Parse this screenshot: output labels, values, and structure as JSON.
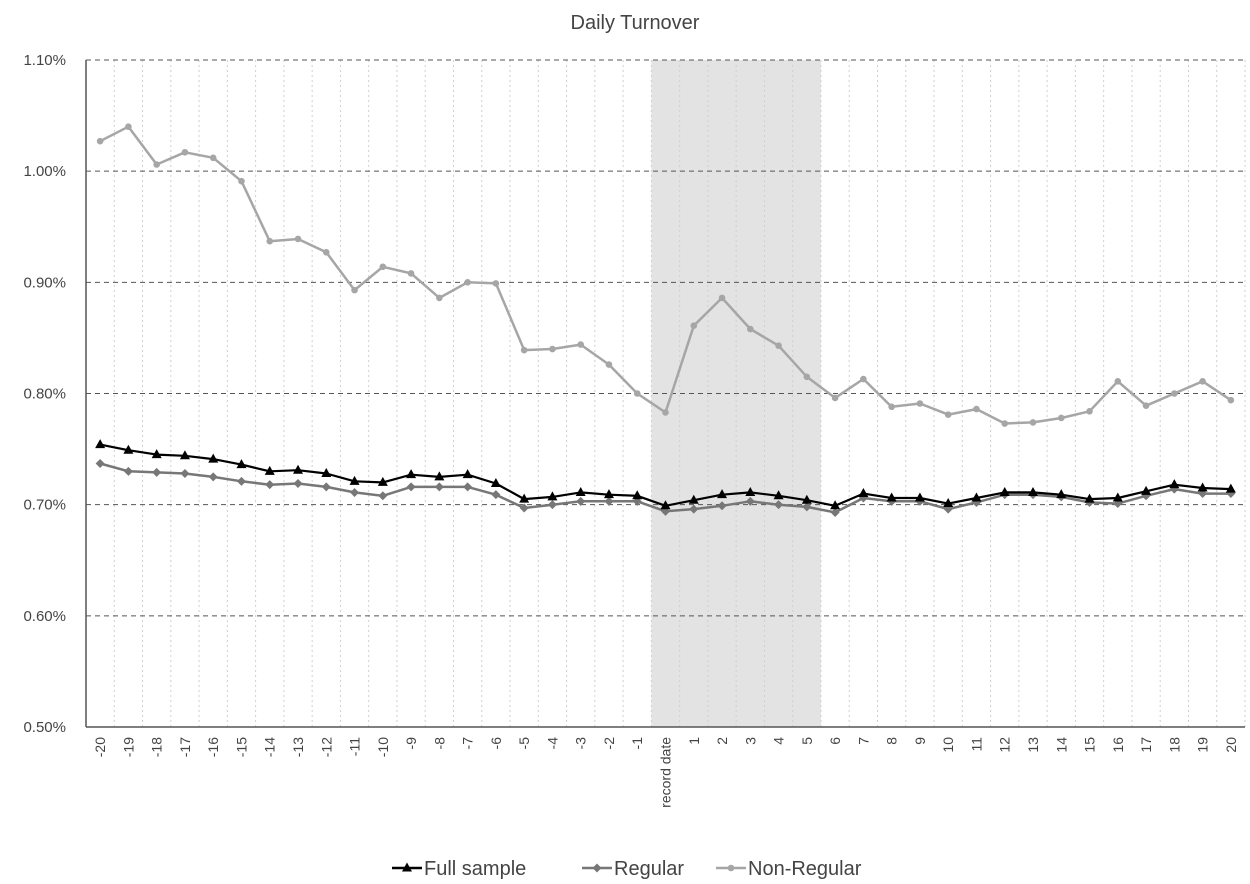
{
  "chart_data": {
    "type": "line",
    "title": "Daily Turnover",
    "xlabel": "",
    "ylabel": "",
    "categories": [
      "-20",
      "-19",
      "-18",
      "-17",
      "-16",
      "-15",
      "-14",
      "-13",
      "-12",
      "-11",
      "-10",
      "-9",
      "-8",
      "-7",
      "-6",
      "-5",
      "-4",
      "-3",
      "-2",
      "-1",
      "record date",
      "1",
      "2",
      "3",
      "4",
      "5",
      "6",
      "7",
      "8",
      "9",
      "10",
      "11",
      "12",
      "13",
      "14",
      "15",
      "16",
      "17",
      "18",
      "19",
      "20"
    ],
    "ylim": [
      0.5,
      1.1
    ],
    "yticks": [
      "0.50%",
      "0.60%",
      "0.70%",
      "0.80%",
      "0.90%",
      "1.00%",
      "1.10%"
    ],
    "grid": true,
    "shaded_region": {
      "from": "record date",
      "to": "5"
    },
    "legend_position": "bottom",
    "series": [
      {
        "name": "Full sample",
        "color": "#000000",
        "marker": "triangle",
        "values": [
          0.754,
          0.749,
          0.745,
          0.744,
          0.741,
          0.736,
          0.73,
          0.731,
          0.728,
          0.721,
          0.72,
          0.727,
          0.725,
          0.727,
          0.719,
          0.705,
          0.707,
          0.711,
          0.709,
          0.708,
          0.699,
          0.704,
          0.709,
          0.711,
          0.708,
          0.704,
          0.699,
          0.71,
          0.706,
          0.706,
          0.701,
          0.706,
          0.711,
          0.711,
          0.709,
          0.705,
          0.706,
          0.712,
          0.718,
          0.715,
          0.714
        ]
      },
      {
        "name": "Regular",
        "color": "#777777",
        "marker": "diamond",
        "values": [
          0.737,
          0.73,
          0.729,
          0.728,
          0.725,
          0.721,
          0.718,
          0.719,
          0.716,
          0.711,
          0.708,
          0.716,
          0.716,
          0.716,
          0.709,
          0.697,
          0.7,
          0.703,
          0.703,
          0.703,
          0.694,
          0.696,
          0.699,
          0.703,
          0.7,
          0.698,
          0.693,
          0.706,
          0.703,
          0.703,
          0.696,
          0.702,
          0.709,
          0.709,
          0.707,
          0.702,
          0.701,
          0.708,
          0.714,
          0.71,
          0.71
        ]
      },
      {
        "name": "Non-Regular",
        "color": "#a6a6a6",
        "marker": "circle",
        "values": [
          1.027,
          1.04,
          1.006,
          1.017,
          1.012,
          0.991,
          0.937,
          0.939,
          0.927,
          0.893,
          0.914,
          0.908,
          0.886,
          0.9,
          0.899,
          0.839,
          0.84,
          0.844,
          0.826,
          0.8,
          0.783,
          0.861,
          0.886,
          0.858,
          0.843,
          0.815,
          0.796,
          0.813,
          0.788,
          0.791,
          0.781,
          0.786,
          0.773,
          0.774,
          0.778,
          0.784,
          0.811,
          0.789,
          0.8,
          0.811,
          0.794
        ]
      }
    ]
  }
}
